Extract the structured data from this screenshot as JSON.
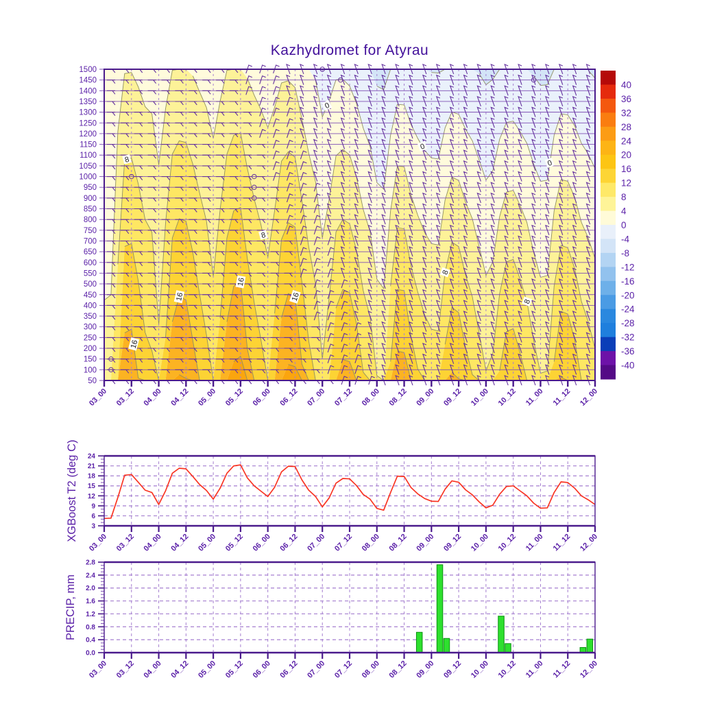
{
  "title": "Kazhydromet for Atyrau",
  "x_axis": {
    "tick_labels": [
      "03_00",
      "03_12",
      "04_00",
      "04_12",
      "05_00",
      "05_12",
      "06_00",
      "06_12",
      "07_00",
      "07_12",
      "08_00",
      "08_12",
      "09_00",
      "09_12",
      "10_00",
      "10_12",
      "11_00",
      "11_12",
      "12_00"
    ],
    "total_hours": 216,
    "tick_step_hours": 12
  },
  "chart_data": [
    {
      "type": "heatmap",
      "subtype": "temperature-height cross-section with wind barbs (filled contours, deg C)",
      "y_range": [
        50,
        1500
      ],
      "y_tick_step": 50,
      "y_tick_labels": [
        1500,
        1450,
        1400,
        1350,
        1300,
        1250,
        1200,
        1150,
        1100,
        1050,
        1000,
        950,
        900,
        850,
        800,
        750,
        700,
        650,
        600,
        550,
        500,
        450,
        400,
        350,
        300,
        250,
        200,
        150,
        100,
        50
      ],
      "band_thresholds": [
        -8,
        -4,
        0,
        4,
        8,
        12,
        16,
        20,
        24
      ],
      "band_colors": [
        "#D3E4F7",
        "#EAF1FB",
        "#FFFBDC",
        "#FDF298",
        "#FEE763",
        "#FDD334",
        "#FCB322",
        "#FBA50E"
      ],
      "contour_line_levels": [
        -4,
        0,
        4,
        8,
        12,
        16,
        20
      ],
      "contour_labels": [
        {
          "value": 16,
          "hour": 13,
          "rot": -75
        },
        {
          "value": 16,
          "hour": 33,
          "rot": -78
        },
        {
          "value": 16,
          "hour": 60,
          "rot": -80
        },
        {
          "value": 16,
          "hour": 84,
          "rot": -72
        },
        {
          "value": 8,
          "hour": 10,
          "rot": -15
        },
        {
          "value": 8,
          "hour": 70,
          "rot": -15
        },
        {
          "value": 8,
          "hour": 150,
          "rot": -70
        },
        {
          "value": 8,
          "hour": 186,
          "rot": -70
        },
        {
          "value": 0,
          "hour": 98,
          "rot": -25
        },
        {
          "value": 0,
          "hour": 140,
          "rot": -20
        },
        {
          "value": 0,
          "hour": 196,
          "rot": -20
        }
      ],
      "calm_circles": [
        [
          12,
          1000
        ],
        [
          3,
          100
        ],
        [
          3,
          150
        ],
        [
          66,
          1000
        ],
        [
          66,
          950
        ],
        [
          66,
          900
        ],
        [
          96,
          1500
        ],
        [
          104,
          1450
        ],
        [
          189,
          1450
        ]
      ],
      "field_model": {
        "mean_surface_temp": 13,
        "mean_drop_to_top": 10.5,
        "diurnal_damping_at_top": 0.75,
        "upper_cooling_start_h": 72,
        "upper_cooling_full_h": 120,
        "upper_cooling_max": 6
      },
      "wind_barbs": {
        "x_step_hours": 6,
        "level_step": 50,
        "regime": "easterly (horizontal barbs) early period, turning northerly (steep barbs) later, earlier aloft"
      },
      "colorbar": {
        "tick_labels": [
          40,
          36,
          32,
          28,
          24,
          20,
          16,
          12,
          8,
          4,
          0,
          -4,
          -8,
          -12,
          -16,
          -20,
          -24,
          -28,
          -32,
          -36,
          -40
        ],
        "cell_colors": [
          "#B50A09",
          "#E52A0C",
          "#F4580E",
          "#FA7D10",
          "#FC9C14",
          "#FDB415",
          "#FDC513",
          "#FDD535",
          "#FEE968",
          "#FEF498",
          "#FFFBD8",
          "#E9F0FA",
          "#D3E4F7",
          "#B3D4F3",
          "#92C2EE",
          "#6EB0E9",
          "#4A9BE4",
          "#2A88DF",
          "#1F7FDD",
          "#0A3EB8",
          "#6D12A8",
          "#540A86"
        ]
      }
    },
    {
      "type": "line",
      "ylabel": "XGBoost T2 (deg C)",
      "y_ticks": [
        3,
        6,
        9,
        12,
        15,
        18,
        21,
        24
      ],
      "ylim": [
        3,
        24
      ],
      "x_start": "03_00",
      "x_step_hours": 3,
      "line_color": "#F93524",
      "values_3h": [
        5.2,
        5.3,
        11.5,
        18.2,
        18.4,
        16.1,
        13.7,
        13.0,
        9.4,
        13.5,
        18.8,
        20.3,
        20.1,
        17.8,
        15.4,
        13.6,
        11.0,
        14.3,
        18.8,
        21.0,
        21.3,
        17.4,
        15.0,
        13.4,
        11.8,
        14.6,
        19.2,
        20.9,
        20.8,
        16.8,
        13.7,
        11.8,
        8.7,
        11.4,
        15.8,
        17.2,
        17.1,
        15.1,
        12.4,
        11.0,
        8.2,
        7.7,
        13.0,
        17.9,
        17.8,
        14.5,
        12.6,
        11.2,
        10.4,
        10.3,
        14.0,
        16.5,
        16.1,
        13.8,
        12.3,
        10.2,
        8.4,
        9.2,
        12.5,
        14.8,
        15.0,
        13.5,
        12.0,
        9.8,
        8.3,
        8.4,
        13.0,
        16.2,
        16.0,
        14.3,
        12.0,
        10.8,
        9.4
      ]
    },
    {
      "type": "bar",
      "ylabel": "PRECIP, mm",
      "y_tick_labels": [
        "0.0",
        "0.4",
        "0.8",
        "1.2",
        "1.6",
        "2.0",
        "2.4",
        "2.8"
      ],
      "ylim": [
        0,
        2.8
      ],
      "bar_color": "#2EE02E",
      "bar_border": "#0A9010",
      "bars": [
        {
          "time": "08_18",
          "hour": 138,
          "value": 0.63
        },
        {
          "time": "09_03",
          "hour": 147,
          "value": 2.72
        },
        {
          "time": "09_06",
          "hour": 150,
          "value": 0.44
        },
        {
          "time": "10_06",
          "hour": 174,
          "value": 1.13
        },
        {
          "time": "10_09",
          "hour": 177,
          "value": 0.28
        },
        {
          "time": "11_18",
          "hour": 210,
          "value": 0.16
        },
        {
          "time": "11_21",
          "hour": 213,
          "value": 0.42
        }
      ]
    }
  ],
  "style_colors": {
    "title_text": "#43119B",
    "axis_line": "#4A1A8C",
    "tick_text": "#5B21A8",
    "grid_dash": "#A57FD0",
    "level_line": "#7E4FB5",
    "wind_barb": "#63309E",
    "contour_line": "#8F8F60"
  }
}
